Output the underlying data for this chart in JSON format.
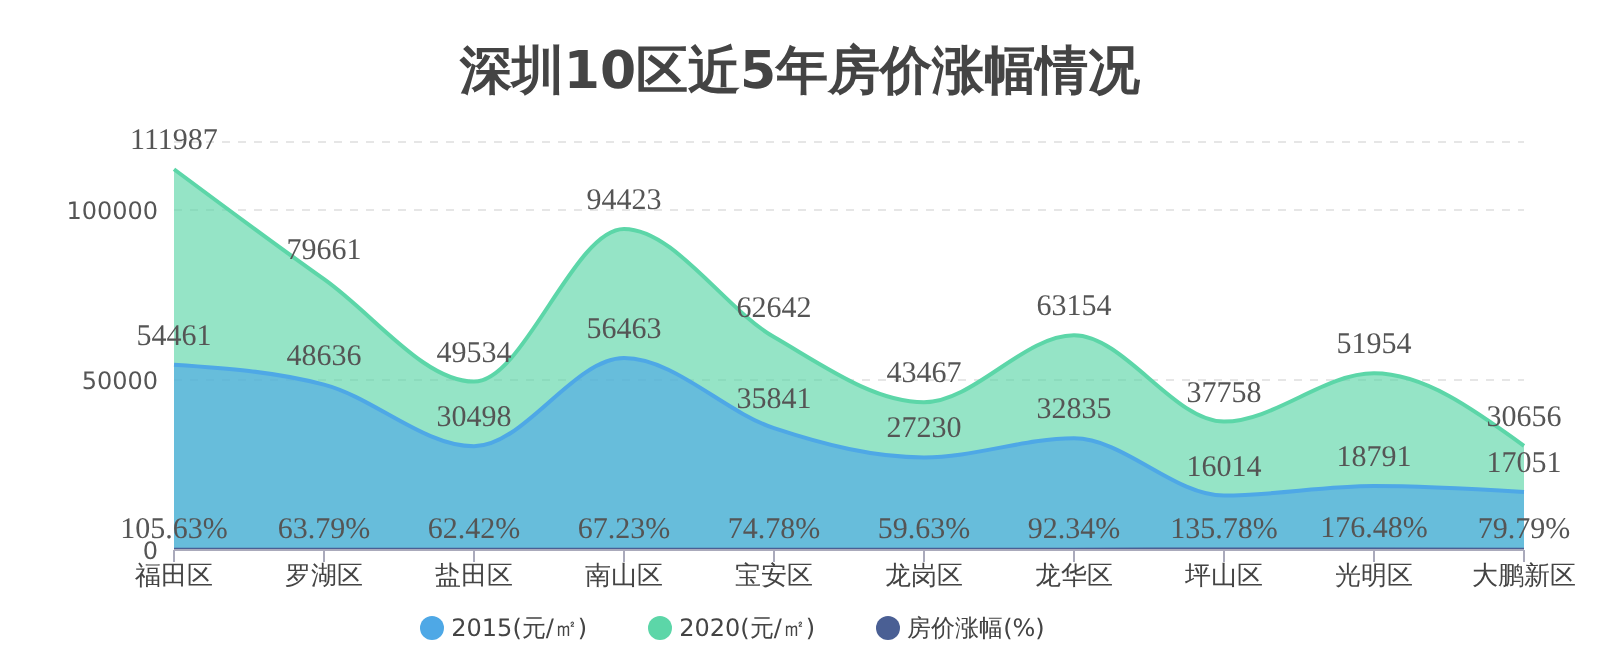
{
  "chart_data": {
    "type": "area",
    "title": "深圳10区近5年房价涨幅情况",
    "categories": [
      "福田区",
      "罗湖区",
      "盐田区",
      "南山区",
      "宝安区",
      "龙岗区",
      "龙华区",
      "坪山区",
      "光明区",
      "大鹏新区"
    ],
    "series": [
      {
        "name": "2015(元/㎡)",
        "color": "#4ea8e6",
        "values": [
          54461,
          48636,
          30498,
          56463,
          35841,
          27230,
          32835,
          16014,
          18791,
          17051
        ]
      },
      {
        "name": "2020(元/㎡)",
        "color": "#5cd6a8",
        "values": [
          111987,
          79661,
          49534,
          94423,
          62642,
          43467,
          63154,
          37758,
          51954,
          30656
        ]
      },
      {
        "name": "房价涨幅(%)",
        "color": "#4a5f94",
        "values": [
          105.63,
          63.79,
          62.42,
          67.23,
          74.78,
          59.63,
          92.34,
          135.78,
          176.48,
          79.79
        ],
        "value_labels": [
          "105.63%",
          "63.79%",
          "62.42%",
          "67.23%",
          "74.78%",
          "59.63%",
          "92.34%",
          "135.78%",
          "176.48%",
          "79.79%"
        ]
      }
    ],
    "ylim": [
      0,
      120000
    ],
    "yticks": [
      0,
      50000,
      100000
    ],
    "grid": "y",
    "legend": "bottom",
    "data_labels": true,
    "marker": "none"
  }
}
